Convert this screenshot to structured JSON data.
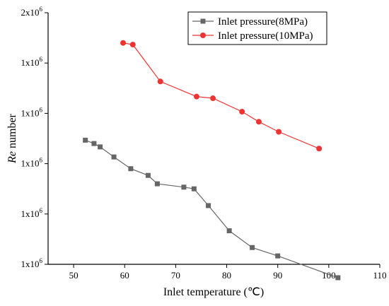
{
  "chart_data": {
    "type": "line",
    "title": "",
    "xlabel": "Inlet temperature (℃)",
    "ylabel_italic": "Re",
    "ylabel_rest": " number",
    "xlim": [
      45,
      110
    ],
    "ylim": [
      0.5,
      2.0
    ],
    "x_ticks": [
      50,
      60,
      70,
      80,
      90,
      100,
      110
    ],
    "y_ticks": [
      {
        "value": 0.5,
        "base": "1x10",
        "exp": "6"
      },
      {
        "value": 0.8,
        "base": "1x10",
        "exp": "6"
      },
      {
        "value": 1.1,
        "base": "1x10",
        "exp": "6"
      },
      {
        "value": 1.4,
        "base": "1x10",
        "exp": "6"
      },
      {
        "value": 1.7,
        "base": "1x10",
        "exp": "6"
      },
      {
        "value": 2.0,
        "base": "2x10",
        "exp": "6"
      }
    ],
    "grid": false,
    "legend_position": "top-right",
    "series": [
      {
        "name": "Inlet pressure(8MPa)",
        "color": "#666666",
        "marker": "square",
        "x": [
          52.3,
          54.0,
          55.2,
          57.9,
          61.2,
          64.6,
          66.4,
          71.6,
          73.6,
          76.4,
          80.5,
          85.0,
          90.0,
          101.8
        ],
        "y": [
          1.24,
          1.22,
          1.2,
          1.14,
          1.07,
          1.03,
          0.98,
          0.96,
          0.95,
          0.85,
          0.7,
          0.6,
          0.55,
          0.42
        ]
      },
      {
        "name": "Inlet pressure(10MPa)",
        "color": "#ee3333",
        "marker": "circle",
        "x": [
          59.7,
          61.6,
          67.0,
          74.1,
          77.3,
          83.0,
          86.3,
          90.2,
          98.1
        ],
        "y": [
          1.82,
          1.81,
          1.59,
          1.5,
          1.49,
          1.41,
          1.35,
          1.29,
          1.19
        ]
      }
    ]
  }
}
